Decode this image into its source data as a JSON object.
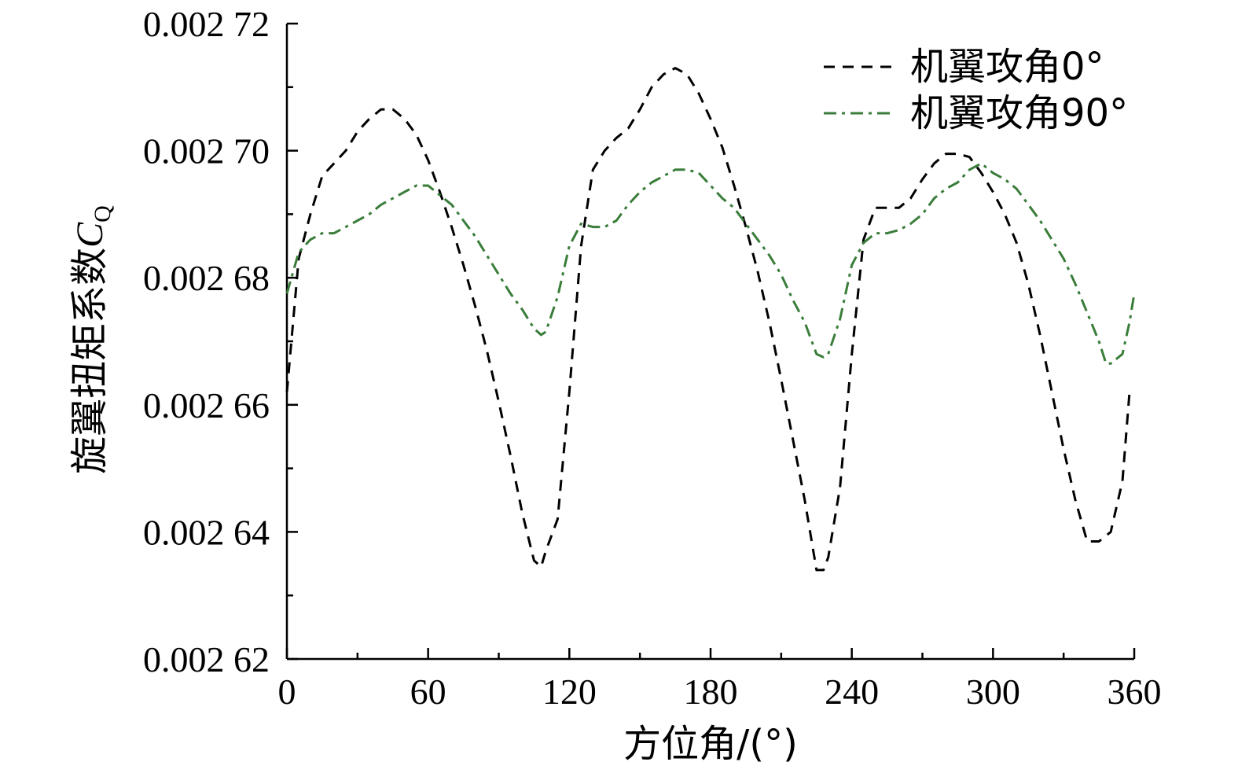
{
  "chart_data": {
    "type": "line",
    "xlabel": "方位角/(°)",
    "ylabel": "旋翼扭矩系数",
    "ylabel_symbol": "C",
    "ylabel_subscript": "Q",
    "xlim": [
      0,
      360
    ],
    "ylim": [
      0.00262,
      0.00272
    ],
    "x_ticks": [
      0,
      60,
      120,
      180,
      240,
      300,
      360
    ],
    "x_tick_labels": [
      "0",
      "60",
      "120",
      "180",
      "240",
      "300",
      "360"
    ],
    "y_ticks": [
      0.00262,
      0.00264,
      0.00266,
      0.00268,
      0.0027,
      0.00272
    ],
    "y_tick_labels": [
      "0.002 62",
      "0.002 64",
      "0.002 66",
      "0.002 68",
      "0.002 70",
      "0.002 72"
    ],
    "grid": false,
    "legend_position": "top-right",
    "series": [
      {
        "name": "机翼攻角0°",
        "color": "#000000",
        "dash": "dashed",
        "x": [
          0,
          5,
          10,
          15,
          20,
          25,
          30,
          35,
          40,
          45,
          50,
          55,
          60,
          65,
          70,
          75,
          80,
          85,
          90,
          95,
          100,
          105,
          108,
          110,
          115,
          120,
          125,
          130,
          135,
          140,
          145,
          150,
          155,
          160,
          165,
          170,
          175,
          180,
          185,
          190,
          195,
          200,
          205,
          210,
          215,
          220,
          225,
          228,
          230,
          235,
          240,
          245,
          250,
          255,
          260,
          265,
          270,
          275,
          280,
          285,
          290,
          295,
          300,
          305,
          310,
          315,
          320,
          325,
          330,
          335,
          340,
          345,
          350,
          355,
          358,
          360
        ],
        "y": [
          0.002662,
          0.002683,
          0.00269,
          0.002696,
          0.002698,
          0.0027,
          0.002703,
          0.002705,
          0.0027065,
          0.0027065,
          0.002705,
          0.0027025,
          0.0026985,
          0.0026935,
          0.002688,
          0.002682,
          0.0026755,
          0.0026685,
          0.0026605,
          0.002652,
          0.002643,
          0.0026355,
          0.0026345,
          0.002637,
          0.002642,
          0.002662,
          0.002685,
          0.002697,
          0.0027,
          0.002702,
          0.0027035,
          0.0027065,
          0.00271,
          0.002712,
          0.002713,
          0.002712,
          0.002709,
          0.002705,
          0.0027005,
          0.0026945,
          0.002688,
          0.002681,
          0.002673,
          0.002664,
          0.0026545,
          0.002645,
          0.002634,
          0.002634,
          0.002636,
          0.002647,
          0.002668,
          0.002686,
          0.002691,
          0.002691,
          0.002691,
          0.0026925,
          0.0026955,
          0.002698,
          0.0026995,
          0.0026995,
          0.002699,
          0.0026965,
          0.0026935,
          0.00269,
          0.0026855,
          0.002679,
          0.002671,
          0.002662,
          0.002653,
          0.002645,
          0.0026385,
          0.0026385,
          0.00264,
          0.002648,
          0.002662,
          0.002662
        ]
      },
      {
        "name": "机翼攻角90°",
        "color": "#3a7d3a",
        "dash": "dashdot",
        "x": [
          0,
          5,
          10,
          15,
          20,
          25,
          30,
          35,
          40,
          45,
          50,
          55,
          60,
          65,
          70,
          75,
          80,
          85,
          90,
          95,
          100,
          105,
          108,
          110,
          115,
          120,
          125,
          130,
          135,
          140,
          145,
          150,
          155,
          160,
          165,
          170,
          175,
          180,
          185,
          190,
          195,
          200,
          205,
          210,
          215,
          220,
          225,
          228,
          230,
          235,
          240,
          245,
          250,
          255,
          260,
          265,
          270,
          275,
          280,
          285,
          290,
          295,
          300,
          305,
          310,
          315,
          320,
          325,
          330,
          335,
          340,
          345,
          348,
          350,
          355,
          358,
          360
        ],
        "y": [
          0.0026775,
          0.002684,
          0.002686,
          0.002687,
          0.002687,
          0.002688,
          0.002689,
          0.00269,
          0.0026915,
          0.0026925,
          0.0026935,
          0.0026945,
          0.0026945,
          0.002693,
          0.0026915,
          0.002689,
          0.0026865,
          0.0026835,
          0.0026805,
          0.0026775,
          0.002675,
          0.002672,
          0.002671,
          0.0026715,
          0.002677,
          0.002685,
          0.0026885,
          0.002688,
          0.002688,
          0.002689,
          0.0026915,
          0.0026935,
          0.002695,
          0.002696,
          0.002697,
          0.002697,
          0.0026965,
          0.0026945,
          0.0026925,
          0.002691,
          0.0026885,
          0.002686,
          0.0026835,
          0.0026805,
          0.0026765,
          0.002673,
          0.002668,
          0.0026675,
          0.002668,
          0.0026735,
          0.002682,
          0.0026855,
          0.002687,
          0.002687,
          0.0026875,
          0.0026885,
          0.00269,
          0.0026925,
          0.002694,
          0.002695,
          0.002697,
          0.002698,
          0.0026965,
          0.0026955,
          0.002694,
          0.0026915,
          0.002689,
          0.002686,
          0.002683,
          0.002679,
          0.0026745,
          0.00267,
          0.0026665,
          0.0026665,
          0.002668,
          0.002673,
          0.0026775
        ]
      }
    ]
  }
}
